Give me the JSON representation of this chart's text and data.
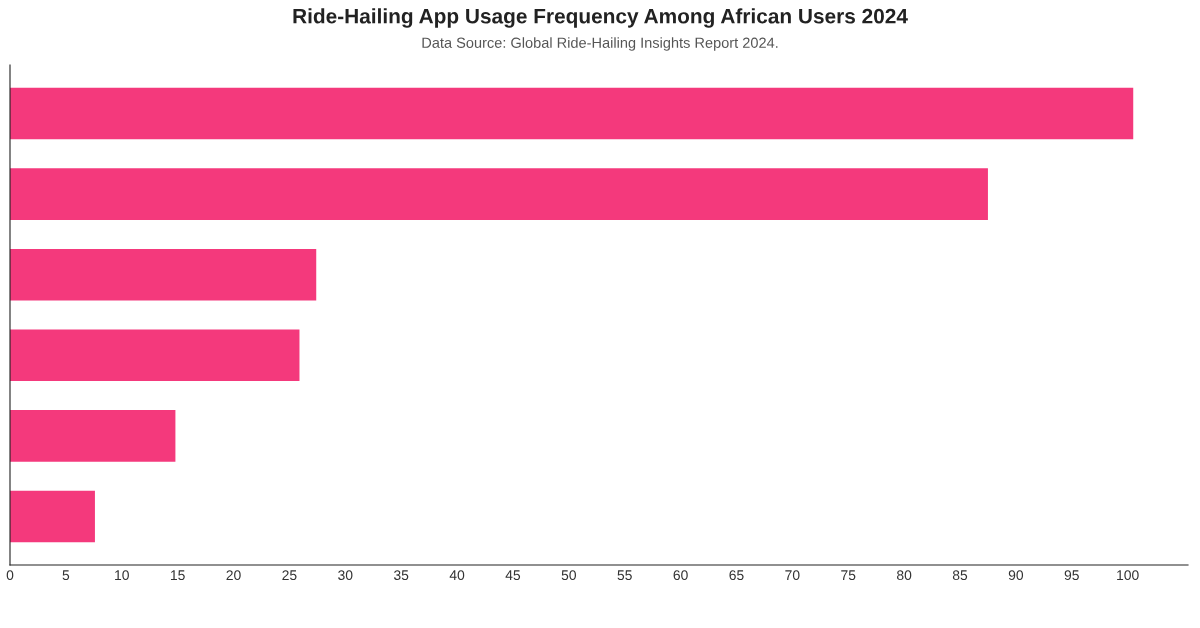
{
  "chart_data": {
    "type": "bar",
    "orientation": "horizontal",
    "title": "Ride-Hailing App Usage Frequency Among African Users 2024",
    "subtitle": "Data Source: Global Ride-Hailing Insights Report 2024.",
    "categories": [
      null,
      null,
      null,
      null,
      null,
      null
    ],
    "values": [
      100.5,
      87.5,
      27.4,
      25.9,
      14.8,
      7.6
    ],
    "color": "#f4397c",
    "xlim": [
      0,
      105.4
    ],
    "xticks": [
      0,
      5,
      10,
      15,
      20,
      25,
      30,
      35,
      40,
      45,
      50,
      55,
      60,
      65,
      70,
      75,
      80,
      85,
      90,
      95,
      100
    ],
    "tick_labels": "x",
    "grid": false
  }
}
